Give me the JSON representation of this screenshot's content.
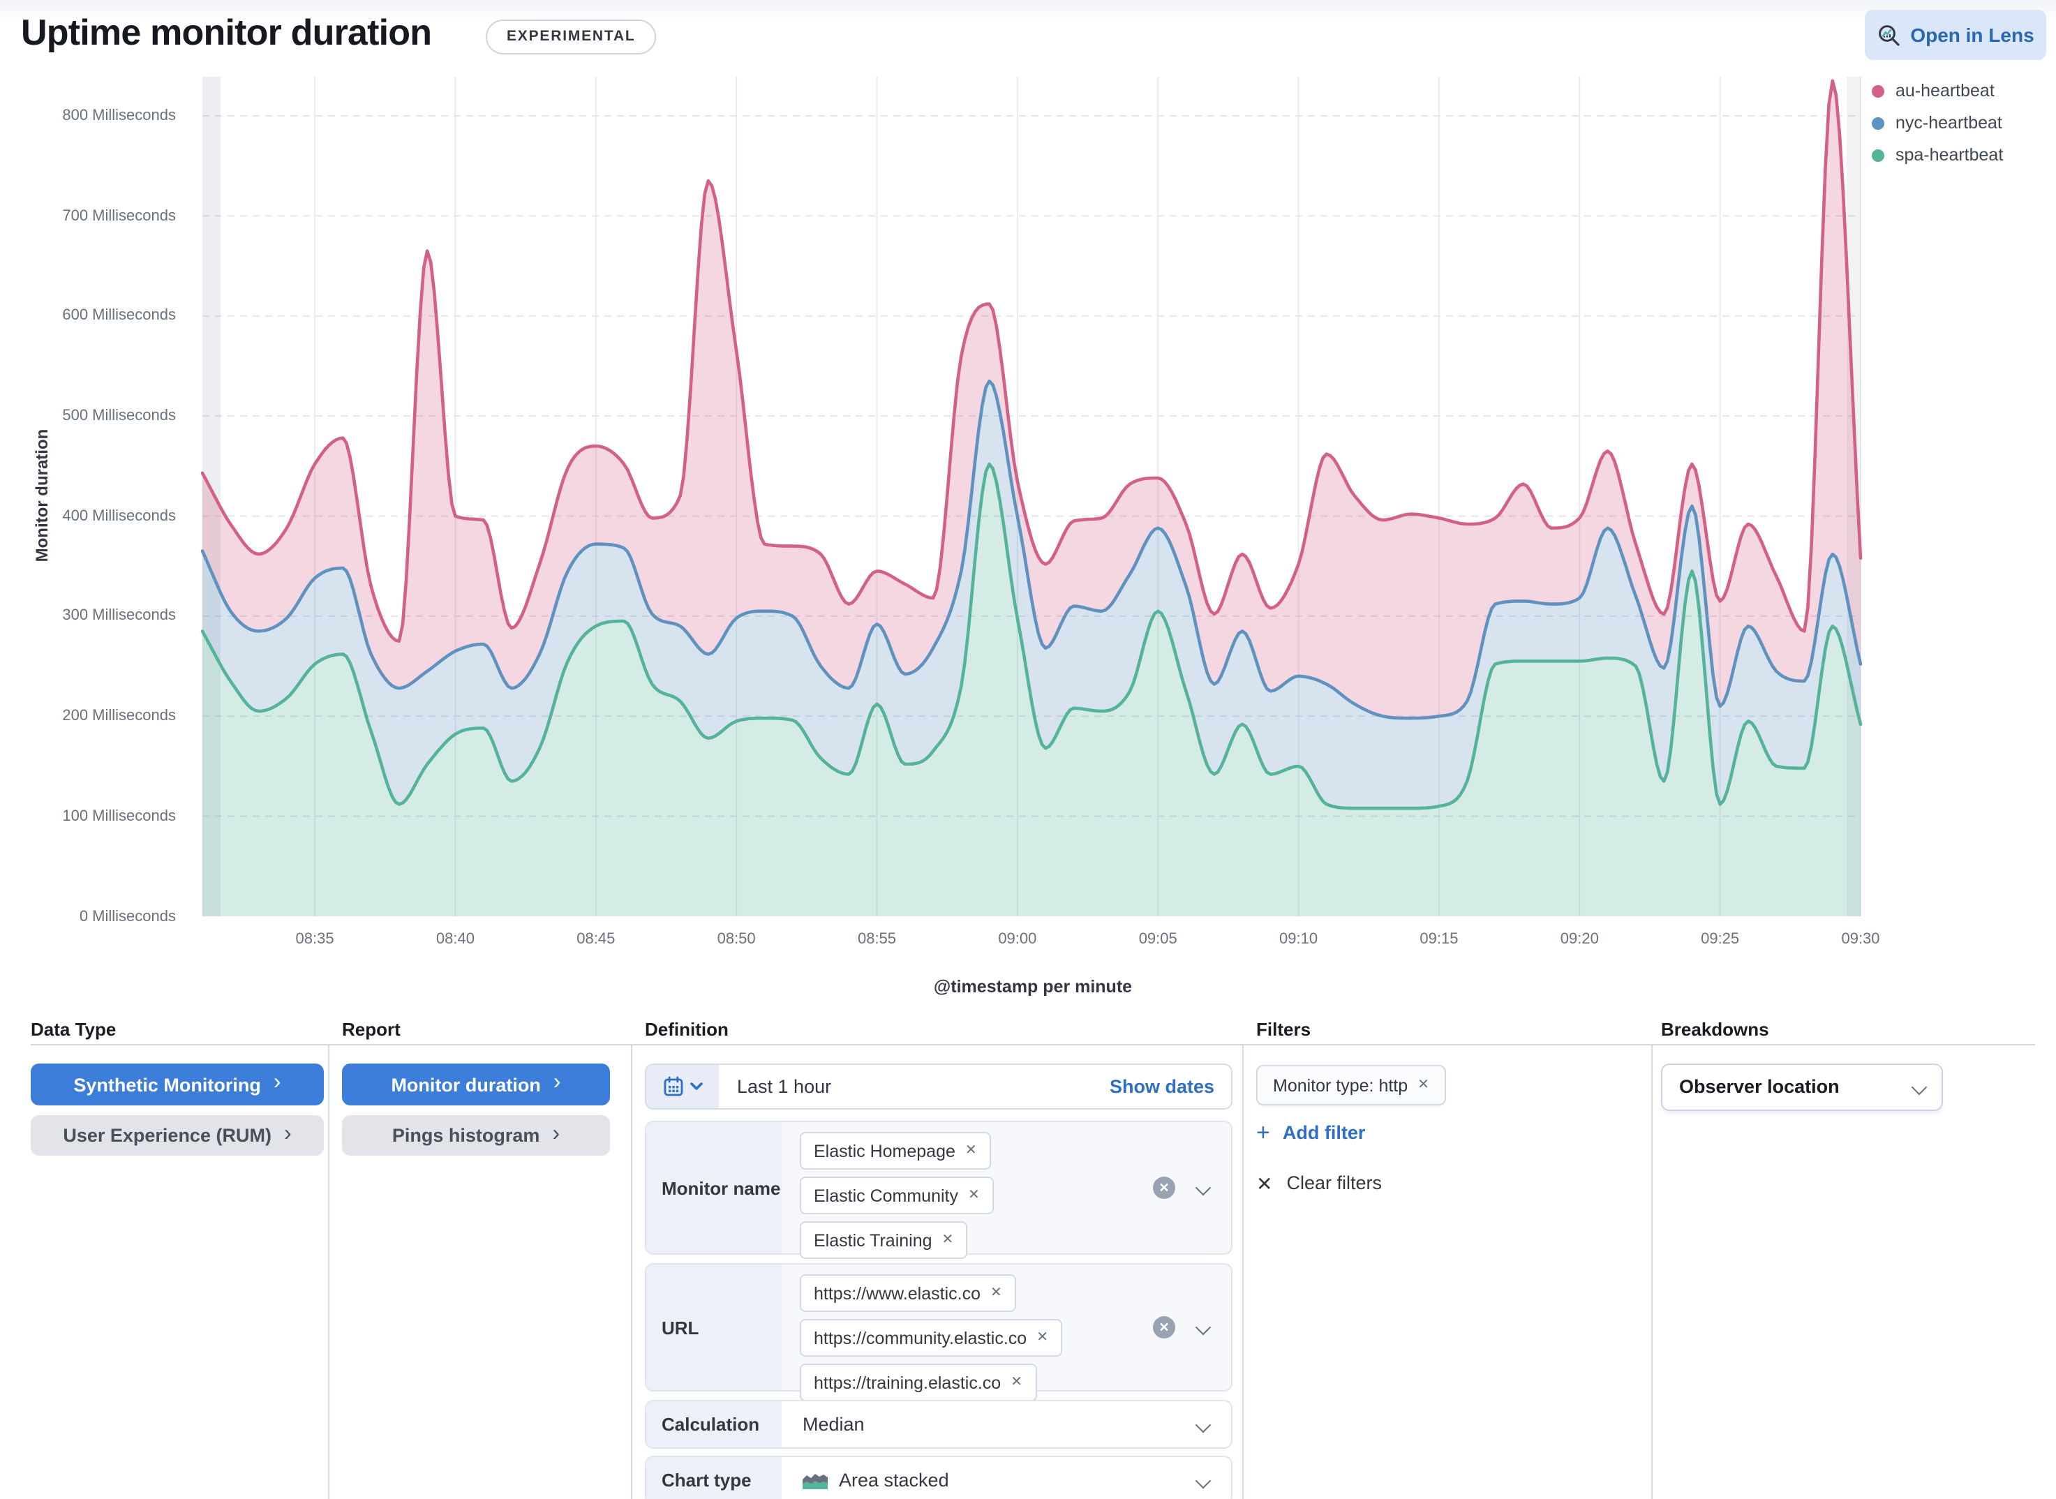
{
  "header": {
    "title": "Uptime monitor duration",
    "experimental_badge": "EXPERIMENTAL",
    "open_in_lens_label": "Open in Lens"
  },
  "colors": {
    "primary_button_fill": "#3b7dd8",
    "link_blue": "#2e6fc5",
    "lens_button_bg": "#d9e7f8",
    "au_heartbeat": "#d36086",
    "nyc_heartbeat": "#6092c0",
    "spa_heartbeat": "#54b399"
  },
  "chart_data": {
    "type": "area",
    "stacked": true,
    "title": "",
    "xlabel": "@timestamp per minute",
    "ylabel": "Monitor duration",
    "ylim": [
      0,
      840
    ],
    "y_tick_values": [
      0,
      100,
      200,
      300,
      400,
      500,
      600,
      700,
      800
    ],
    "y_tick_suffix": " Milliseconds",
    "x_tick_labels": [
      "08:35",
      "08:40",
      "08:45",
      "08:50",
      "08:55",
      "09:00",
      "09:05",
      "09:10",
      "09:15",
      "09:20",
      "09:25",
      "09:30"
    ],
    "grid": true,
    "legend_position": "right",
    "categories": [
      "08:31",
      "08:32",
      "08:33",
      "08:34",
      "08:35",
      "08:36",
      "08:37",
      "08:38",
      "08:39",
      "08:40",
      "08:41",
      "08:42",
      "08:43",
      "08:44",
      "08:45",
      "08:46",
      "08:47",
      "08:48",
      "08:49",
      "08:50",
      "08:51",
      "08:52",
      "08:53",
      "08:54",
      "08:55",
      "08:56",
      "08:57",
      "08:58",
      "08:59",
      "09:00",
      "09:01",
      "09:02",
      "09:03",
      "09:04",
      "09:05",
      "09:06",
      "09:07",
      "09:08",
      "09:09",
      "09:10",
      "09:11",
      "09:12",
      "09:13",
      "09:14",
      "09:15",
      "09:16",
      "09:17",
      "09:18",
      "09:19",
      "09:20",
      "09:21",
      "09:22",
      "09:23",
      "09:24",
      "09:25",
      "09:26",
      "09:27",
      "09:28",
      "09:29",
      "09:30"
    ],
    "series": [
      {
        "name": "spa-heartbeat",
        "color": "#54b399",
        "values": [
          285,
          235,
          205,
          218,
          252,
          262,
          185,
          112,
          152,
          182,
          188,
          135,
          168,
          255,
          290,
          295,
          232,
          215,
          178,
          195,
          198,
          196,
          158,
          142,
          212,
          152,
          165,
          230,
          452,
          298,
          168,
          208,
          205,
          225,
          305,
          225,
          142,
          192,
          142,
          150,
          112,
          108,
          108,
          108,
          110,
          135,
          252,
          255,
          255,
          255,
          258,
          250,
          135,
          345,
          112,
          195,
          150,
          148,
          290,
          192
        ]
      },
      {
        "name": "nyc-heartbeat",
        "color": "#6092c0",
        "values": [
          80,
          70,
          80,
          80,
          86,
          86,
          77,
          116,
          93,
          83,
          84,
          93,
          94,
          90,
          82,
          73,
          70,
          75,
          84,
          103,
          107,
          104,
          92,
          86,
          80,
          90,
          103,
          115,
          83,
          102,
          100,
          102,
          100,
          117,
          83,
          105,
          90,
          93,
          83,
          90,
          120,
          104,
          92,
          90,
          90,
          80,
          60,
          60,
          57,
          63,
          130,
          70,
          113,
          65,
          98,
          95,
          95,
          87,
          72,
          60
        ]
      },
      {
        "name": "au-heartbeat",
        "color": "#d36086",
        "values": [
          78,
          87,
          77,
          90,
          114,
          130,
          68,
          47,
          420,
          135,
          124,
          60,
          90,
          103,
          98,
          84,
          96,
          130,
          473,
          267,
          67,
          70,
          112,
          84,
          53,
          90,
          50,
          215,
          77,
          35,
          84,
          85,
          93,
          90,
          50,
          62,
          70,
          77,
          83,
          112,
          230,
          208,
          196,
          204,
          198,
          177,
          86,
          117,
          76,
          80,
          77,
          52,
          54,
          42,
          105,
          102,
          95,
          50,
          473,
          106
        ]
      }
    ]
  },
  "panels": {
    "data_type": {
      "header": "Data Type",
      "buttons": [
        {
          "label": "Synthetic Monitoring",
          "selected": true
        },
        {
          "label": "User Experience (RUM)",
          "selected": false
        }
      ]
    },
    "report": {
      "header": "Report",
      "buttons": [
        {
          "label": "Monitor duration",
          "selected": true
        },
        {
          "label": "Pings histogram",
          "selected": false
        }
      ]
    },
    "definition": {
      "header": "Definition",
      "time_label": "Last 1 hour",
      "show_dates": "Show dates",
      "monitor_name": {
        "label": "Monitor name",
        "badges": [
          "Elastic Homepage",
          "Elastic Community",
          "Elastic Training"
        ]
      },
      "url": {
        "label": "URL",
        "badges": [
          "https://www.elastic.co",
          "https://community.elastic.co",
          "https://training.elastic.co"
        ]
      },
      "calculation": {
        "label": "Calculation",
        "value": "Median"
      },
      "chart_type": {
        "label": "Chart type",
        "value": "Area stacked"
      }
    },
    "filters": {
      "header": "Filters",
      "pill": "Monitor type: http",
      "add_filter": "Add filter",
      "clear_filters": "Clear filters"
    },
    "breakdowns": {
      "header": "Breakdowns",
      "selected": "Observer location"
    }
  }
}
